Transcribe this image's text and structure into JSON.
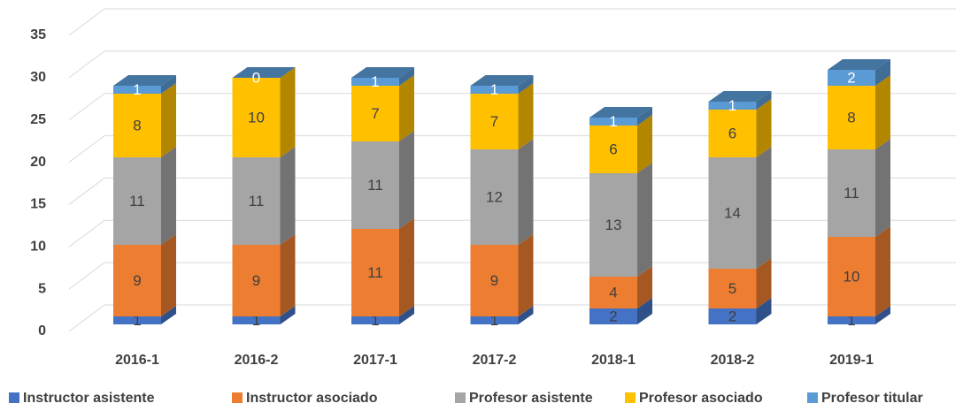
{
  "chart_data": {
    "type": "bar3d_stacked",
    "categories": [
      "2016-1",
      "2016-2",
      "2017-1",
      "2017-2",
      "2018-1",
      "2018-2",
      "2019-1"
    ],
    "series": [
      {
        "name": "Instructor asistente",
        "color": "#4472c4",
        "values": [
          1,
          1,
          1,
          1,
          2,
          2,
          1
        ]
      },
      {
        "name": "Instructor asociado",
        "color": "#ed7d31",
        "values": [
          9,
          9,
          11,
          9,
          4,
          5,
          10
        ]
      },
      {
        "name": "Profesor asistente",
        "color": "#a5a5a5",
        "values": [
          11,
          11,
          11,
          12,
          13,
          14,
          11
        ]
      },
      {
        "name": "Profesor asociado",
        "color": "#ffc000",
        "values": [
          8,
          10,
          7,
          7,
          6,
          6,
          8
        ]
      },
      {
        "name": "Profesor titular",
        "color": "#5b9bd5",
        "values": [
          1,
          0,
          1,
          1,
          1,
          1,
          2
        ]
      }
    ],
    "ylim": [
      0,
      35
    ],
    "yticks": [
      0,
      5,
      10,
      15,
      20,
      25,
      30,
      35
    ],
    "grid": true,
    "legend": "bottom"
  }
}
